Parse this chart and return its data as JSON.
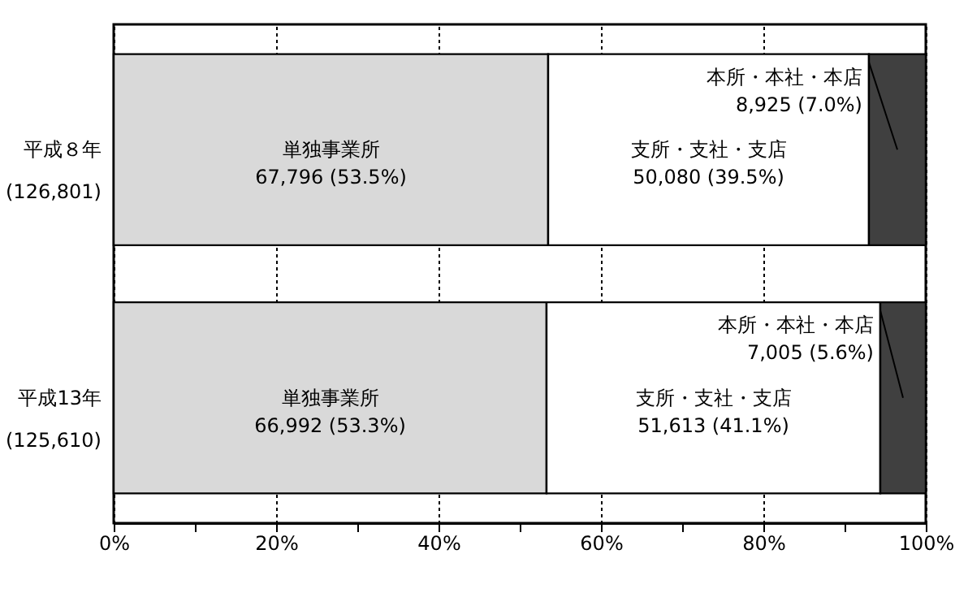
{
  "chart_data": {
    "type": "bar",
    "orientation": "horizontal",
    "stacked": true,
    "categories": [
      "平成８年\n(126,801)",
      "平成13年\n(125,610)"
    ],
    "series": [
      {
        "name": "単独事業所",
        "color": "#d9d9d9",
        "values": [
          53.5,
          53.3
        ],
        "value_labels": [
          "67,796 (53.5%)",
          "66,992 (53.3%)"
        ]
      },
      {
        "name": "支所・支社・支店",
        "color": "#ffffff",
        "values": [
          39.5,
          41.1
        ],
        "value_labels": [
          "50,080 (39.5%)",
          "51,613 (41.1%)"
        ]
      },
      {
        "name": "本所・本社・本店",
        "color": "#404040",
        "values": [
          7.0,
          5.6
        ],
        "value_labels": [
          "8,925 (7.0%)",
          "7,005 (5.6%)"
        ]
      }
    ],
    "xlim": [
      0,
      100
    ],
    "xticks": [
      {
        "value": 0,
        "label": "0%"
      },
      {
        "value": 10,
        "label": null
      },
      {
        "value": 20,
        "label": "20%"
      },
      {
        "value": 30,
        "label": null
      },
      {
        "value": 40,
        "label": "40%"
      },
      {
        "value": 50,
        "label": null
      },
      {
        "value": 60,
        "label": "60%"
      },
      {
        "value": 70,
        "label": null
      },
      {
        "value": 80,
        "label": "80%"
      },
      {
        "value": 90,
        "label": null
      },
      {
        "value": 100,
        "label": "100%"
      }
    ],
    "grid": "x"
  }
}
